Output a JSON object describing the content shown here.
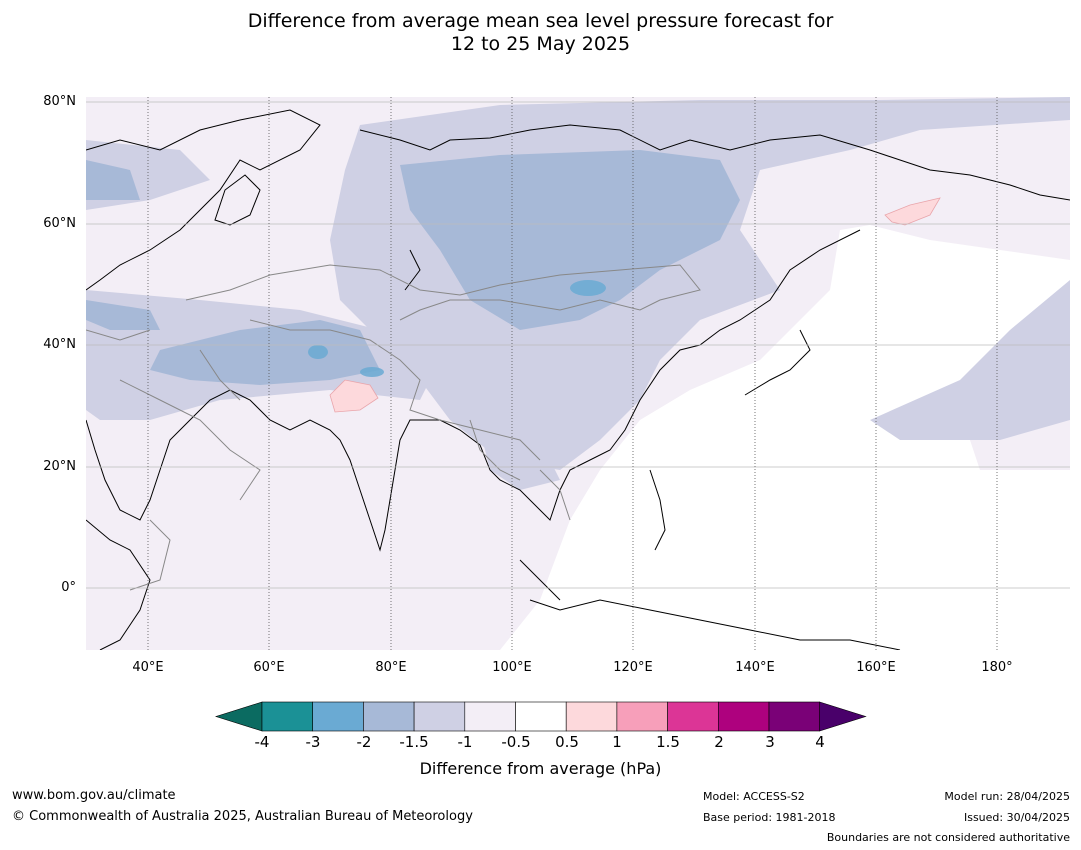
{
  "title_line1": "Difference from average mean sea level pressure forecast for",
  "title_line2": "12 to 25 May 2025",
  "map": {
    "lat_labels": [
      "80°N",
      "60°N",
      "40°N",
      "20°N",
      "0°"
    ],
    "lon_labels": [
      "40°E",
      "60°E",
      "80°E",
      "100°E",
      "120°E",
      "140°E",
      "160°E",
      "180°"
    ]
  },
  "colorbar": {
    "title": "Difference from average (hPa)",
    "tick_labels": [
      "-4",
      "-3",
      "-2",
      "-1.5",
      "-1",
      "-0.5",
      "0.5",
      "1",
      "1.5",
      "2",
      "3",
      "4"
    ],
    "colors": {
      "below_min": "#0b6b61",
      "bins": [
        "#1b9196",
        "#6aaad3",
        "#a7b9d7",
        "#cfd0e4",
        "#f3eef6",
        "#ffffff",
        "#fdd9dc",
        "#f79fba",
        "#dc3596",
        "#ae017e",
        "#7a0177"
      ],
      "above_max": "#49006a"
    }
  },
  "footer": {
    "url": "www.bom.gov.au/climate",
    "copyright": "© Commonwealth of Australia 2025, Australian Bureau of Meteorology",
    "model": "Model: ACCESS-S2",
    "base_period": "Base period: 1981-2018",
    "model_run": "Model run: 28/04/2025",
    "issued": "Issued: 30/04/2025",
    "disclaimer": "Boundaries are not considered authoritative"
  }
}
